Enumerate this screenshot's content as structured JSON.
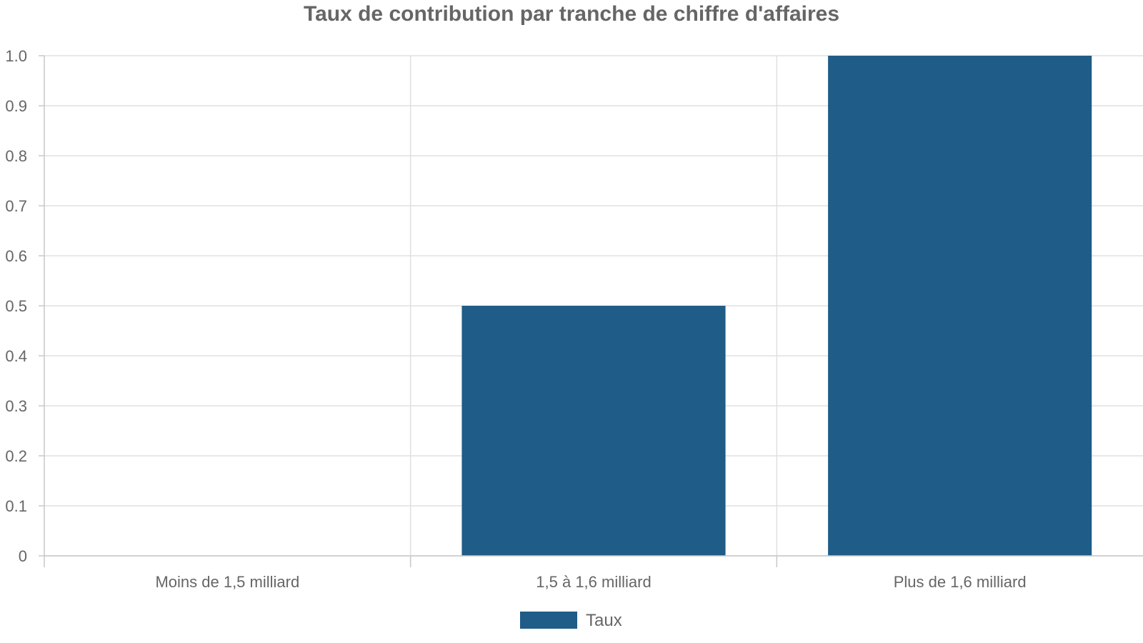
{
  "chart_data": {
    "type": "bar",
    "title": "Taux de contribution par tranche de chiffre d'affaires",
    "xlabel": "",
    "ylabel": "",
    "categories": [
      "Moins de 1,5 milliard",
      "1,5 à 1,6 milliard",
      "Plus de 1,6 milliard"
    ],
    "series": [
      {
        "name": "Taux",
        "values": [
          0,
          0.5,
          1.0
        ],
        "color": "#1f5c87"
      }
    ],
    "ylim": [
      0,
      1.0
    ],
    "yticks": [
      "0",
      "0.1",
      "0.2",
      "0.3",
      "0.4",
      "0.5",
      "0.6",
      "0.7",
      "0.8",
      "0.9",
      "1.0"
    ],
    "grid": true,
    "legend_position": "bottom"
  },
  "colors": {
    "bar": "#1f5c87",
    "grid": "#e0e0e0",
    "axis": "#c8c8c8",
    "text": "#666666"
  }
}
